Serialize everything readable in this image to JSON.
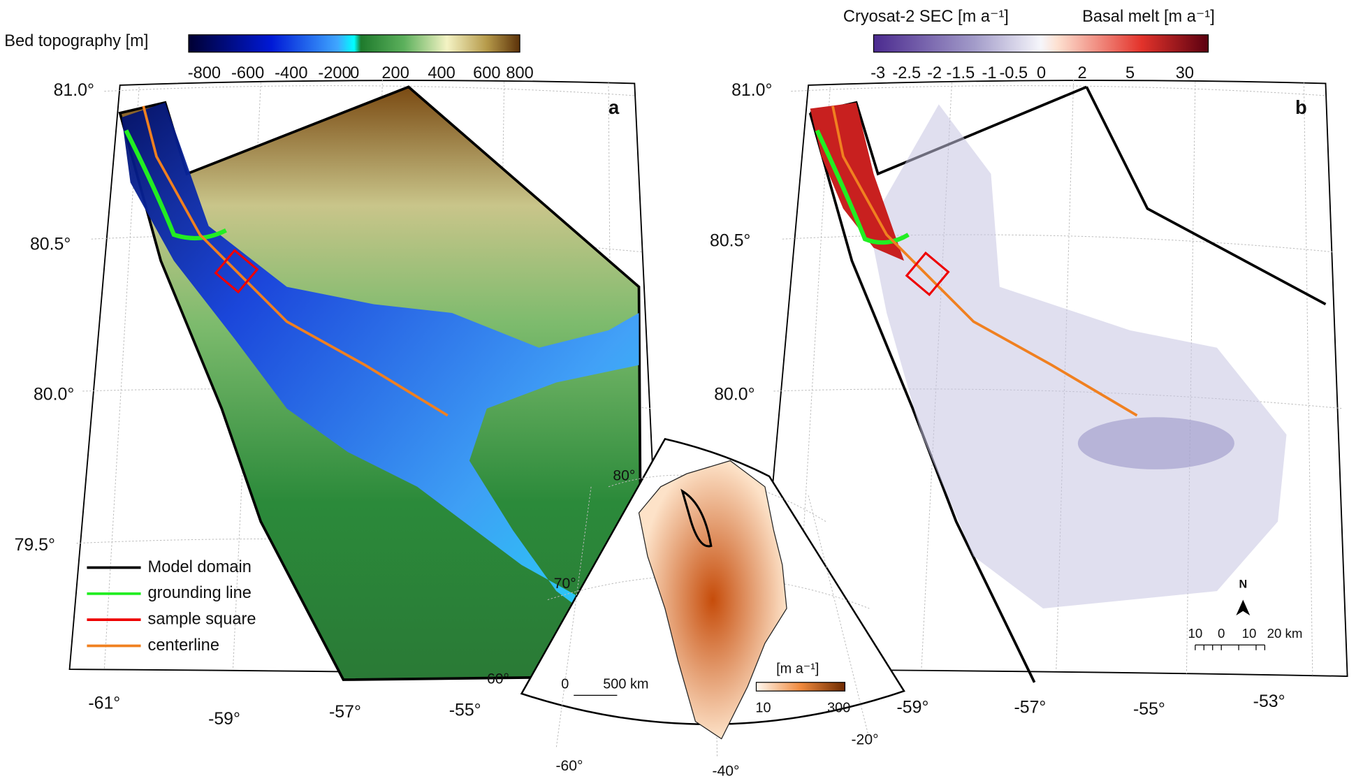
{
  "panel_a": {
    "label": "a",
    "colorbar": {
      "title": "Bed topography [m]",
      "ticks": [
        "-800",
        "-600",
        "-400",
        "-200",
        "0",
        "200",
        "400",
        "600",
        "800"
      ]
    },
    "lat_labels": [
      "81.0°",
      "80.5°",
      "80.0°",
      "79.5°"
    ],
    "lon_labels": [
      "-61°",
      "-59°",
      "-57°",
      "-55°"
    ],
    "legend": [
      "Model domain",
      "grounding line",
      "sample square",
      "centerline"
    ]
  },
  "panel_b": {
    "label": "b",
    "colorbar": {
      "title_left": "Cryosat-2 SEC [m a⁻¹]",
      "title_right": "Basal melt [m a⁻¹]",
      "ticks": [
        "-3",
        "-2.5",
        "-2",
        "-1.5",
        "-1",
        "-0.5",
        "0",
        "2",
        "5",
        "30"
      ]
    },
    "lat_labels": [
      "81.0°",
      "80.5°",
      "80.0°"
    ],
    "lon_labels": [
      "-59°",
      "-57°",
      "-55°",
      "-53°"
    ],
    "north": "N",
    "scale_bar": [
      "10",
      "0",
      "10",
      "20 km"
    ]
  },
  "inset": {
    "scale_bar": [
      "0",
      "500 km"
    ],
    "colorbar": {
      "title": "[m a⁻¹]",
      "ticks": [
        "10",
        "300"
      ]
    },
    "lat_labels": [
      "80°",
      "70°",
      "60°"
    ],
    "lon_labels": [
      "-60°",
      "-40°",
      "-20°"
    ]
  }
}
